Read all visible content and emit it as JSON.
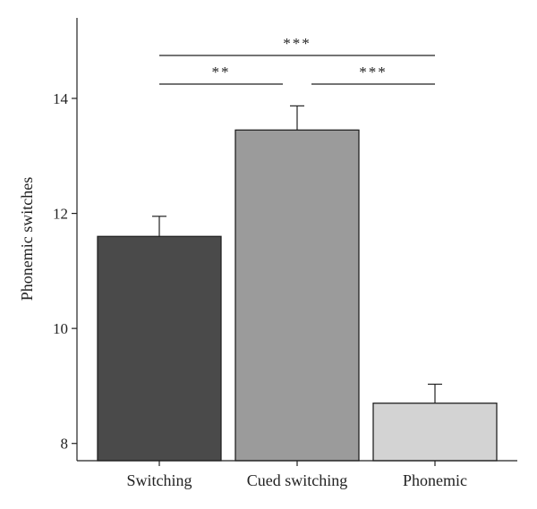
{
  "chart_data": {
    "type": "bar",
    "title": "",
    "xlabel": "",
    "ylabel": "Phonemic switches",
    "ylim": [
      7.7,
      15.4
    ],
    "yticks": [
      8,
      10,
      12,
      14
    ],
    "grid": false,
    "categories": [
      "Switching",
      "Cued switching",
      "Phonemic"
    ],
    "values": [
      11.6,
      13.45,
      8.7
    ],
    "errors": [
      0.35,
      0.42,
      0.33
    ],
    "colors": [
      "#4a4a4a",
      "#9b9b9b",
      "#d3d3d3"
    ],
    "edge_color": "#222222",
    "significance": [
      {
        "from": 0,
        "to": 1,
        "label": "**",
        "level": 1
      },
      {
        "from": 1,
        "to": 2,
        "label": "***",
        "level": 1
      },
      {
        "from": 0,
        "to": 2,
        "label": "***",
        "level": 2
      }
    ]
  }
}
